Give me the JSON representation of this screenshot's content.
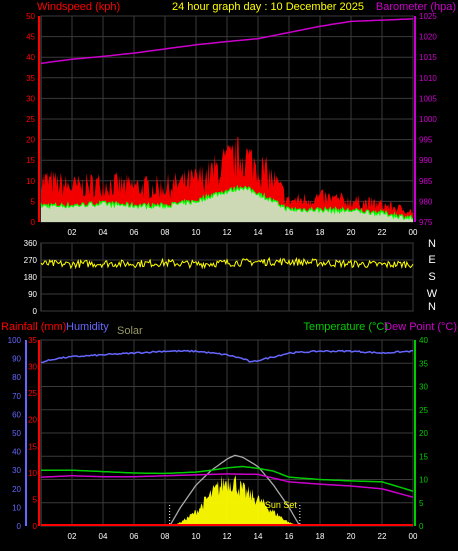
{
  "colors": {
    "background": "#000000",
    "grid": "#3a3a3a",
    "wind_speed": "#ff0000",
    "wind_avg": "#00ff00",
    "wind_band": "#c8f0c8",
    "barometer": "#cc00cc",
    "direction": "#ffff00",
    "rain": "#ff0000",
    "humidity": "#6666ff",
    "temperature": "#00cc00",
    "dewpoint": "#cc00cc",
    "solar": "#ffff00",
    "solar_theory": "#aaaaaa",
    "solar_label": "#999966",
    "date_title": "#ffff00",
    "sunset": "#ffff00",
    "axis_white": "#ffffff"
  },
  "chart_data": [
    {
      "type": "line",
      "title": "24 hour graph day : 10 December 2025",
      "left_label": "Windspeed (kph)",
      "right_label": "Barometer (hpa)",
      "x_ticks": [
        "02",
        "04",
        "06",
        "08",
        "10",
        "12",
        "14",
        "16",
        "18",
        "20",
        "22",
        "00"
      ],
      "left_ticks": [
        "0",
        "5",
        "10",
        "15",
        "20",
        "25",
        "30",
        "35",
        "40",
        "45",
        "50"
      ],
      "right_ticks": [
        "975",
        "980",
        "985",
        "990",
        "995",
        "1000",
        "1005",
        "1010",
        "1015",
        "1020",
        "1025"
      ],
      "left_range": [
        0,
        50
      ],
      "right_range": [
        975,
        1025
      ],
      "grid": true,
      "series": [
        {
          "key": "barometer",
          "hours": [
            0,
            2,
            4,
            6,
            8,
            10,
            12,
            14,
            16,
            18,
            20,
            22,
            24
          ],
          "values": [
            1013.5,
            1014.5,
            1015.2,
            1016.0,
            1017.0,
            1018.0,
            1018.8,
            1019.5,
            1021.0,
            1022.5,
            1023.7,
            1024.0,
            1024.3
          ]
        },
        {
          "key": "gust",
          "hours": [
            0,
            2,
            4,
            6,
            8,
            10,
            11,
            12,
            13,
            14,
            15,
            16,
            18,
            20,
            22,
            23,
            24
          ],
          "values": [
            12,
            10,
            11,
            10,
            10,
            12,
            14,
            17,
            19,
            16,
            12,
            6,
            7,
            6,
            5,
            4,
            3
          ]
        },
        {
          "key": "average",
          "hours": [
            0,
            2,
            4,
            6,
            8,
            10,
            11,
            12,
            13,
            14,
            15,
            16,
            18,
            20,
            22,
            23,
            24
          ],
          "values": [
            4,
            4,
            4.5,
            4,
            4,
            5,
            6.5,
            7.5,
            8.5,
            7,
            5,
            3,
            3,
            2.8,
            2.2,
            1.5,
            1
          ]
        }
      ]
    },
    {
      "type": "line",
      "left_ticks": [
        "0",
        "90",
        "180",
        "270",
        "360"
      ],
      "right_ticks": [
        "N",
        "W",
        "S",
        "E",
        "N"
      ],
      "left_range": [
        0,
        360
      ],
      "grid": true,
      "series": [
        {
          "key": "direction",
          "hours": [
            0,
            2,
            4,
            6,
            8,
            10,
            12,
            14,
            16,
            18,
            20,
            22,
            24
          ],
          "values": [
            250,
            248,
            252,
            250,
            255,
            248,
            255,
            260,
            262,
            255,
            250,
            245,
            250
          ]
        }
      ]
    },
    {
      "type": "line",
      "left_labels": {
        "rainfall": "Rainfall (mm)",
        "humidity": "Humidity",
        "solar": "Solar"
      },
      "right_labels": {
        "temperature": "Temperature (°C)",
        "dewpoint": "Dew Point (°C)"
      },
      "humidity_ticks": [
        "0",
        "10",
        "20",
        "30",
        "40",
        "50",
        "60",
        "70",
        "80",
        "90",
        "100"
      ],
      "rain_ticks": [
        "0",
        "5",
        "10",
        "15",
        "20",
        "25",
        "30",
        "35"
      ],
      "temp_ticks": [
        "0",
        "5",
        "10",
        "15",
        "20",
        "25",
        "30",
        "35",
        "40"
      ],
      "humidity_range": [
        0,
        100
      ],
      "rain_range": [
        0,
        35
      ],
      "temp_range": [
        0,
        40
      ],
      "x_ticks": [
        "02",
        "04",
        "06",
        "08",
        "10",
        "12",
        "14",
        "16",
        "18",
        "20",
        "22",
        "00"
      ],
      "sunrise_hour": 8.3,
      "sunset_hour": 16.7,
      "sunset_label": "Sun Set",
      "grid": true,
      "series": [
        {
          "key": "humidity",
          "hours": [
            0,
            1,
            2,
            4,
            6,
            8,
            10,
            12,
            13,
            13.6,
            14,
            15,
            16,
            18,
            20,
            22,
            24
          ],
          "values": [
            88,
            90,
            91,
            92,
            93,
            94,
            94,
            92,
            90,
            88,
            89,
            91,
            93,
            94,
            94,
            93,
            94
          ]
        },
        {
          "key": "temperature",
          "hours": [
            0,
            2,
            4,
            6,
            8,
            10,
            11,
            12,
            13,
            14,
            15,
            16,
            18,
            20,
            22,
            23,
            24
          ],
          "values": [
            12,
            12,
            11.7,
            11.4,
            11.3,
            11.6,
            12.0,
            12.5,
            12.8,
            12.4,
            11.8,
            10.5,
            10.0,
            9.7,
            9.5,
            8.5,
            7.5
          ]
        },
        {
          "key": "dewpoint",
          "hours": [
            0,
            2,
            4,
            6,
            8,
            10,
            12,
            14,
            16,
            18,
            20,
            22,
            24
          ],
          "values": [
            10.5,
            10.8,
            10.6,
            10.6,
            10.8,
            11.0,
            11.2,
            11.1,
            9.5,
            9.0,
            8.6,
            8.0,
            6.2
          ]
        },
        {
          "key": "solar",
          "hours": [
            8.3,
            9,
            10,
            11,
            11.5,
            12,
            12.5,
            13,
            14,
            15,
            16,
            16.7
          ],
          "values": [
            0,
            2,
            8,
            18,
            22,
            26,
            25,
            20,
            15,
            8,
            2,
            0
          ]
        },
        {
          "key": "solar_theory",
          "hours": [
            8.3,
            9,
            10,
            11,
            12,
            12.5,
            13,
            14,
            15,
            16,
            16.7
          ],
          "values": [
            0,
            10,
            22,
            30,
            36,
            38,
            37,
            32,
            22,
            10,
            0
          ]
        },
        {
          "key": "rain",
          "hours": [
            0,
            24
          ],
          "values": [
            0,
            0
          ]
        }
      ]
    }
  ]
}
